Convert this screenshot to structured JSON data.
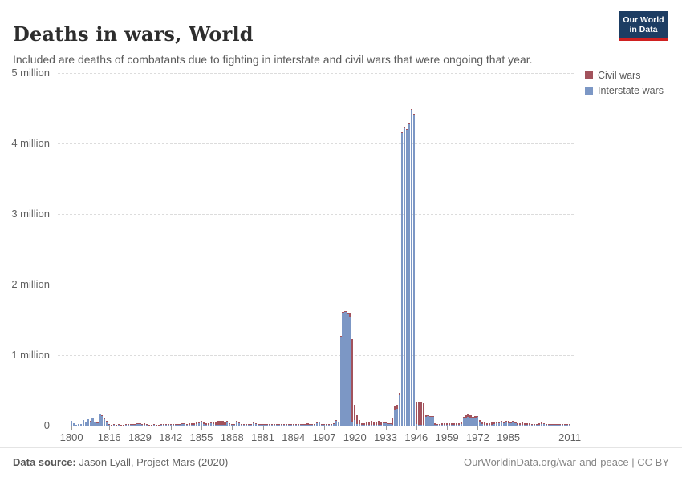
{
  "header": {
    "title": "Deaths in wars, World",
    "subtitle": "Included are deaths of combatants due to fighting in interstate and civil wars that were ongoing that year.",
    "logo": {
      "line1": "Our World",
      "line2": "in Data",
      "bg": "#1d3d63",
      "accent": "#cf2020"
    }
  },
  "footer": {
    "source_label": "Data source:",
    "source_value": " Jason Lyall, Project Mars (2020)",
    "link_text": "OurWorldinData.org/war-and-peace | CC BY"
  },
  "chart_data": {
    "type": "bar",
    "stacked": true,
    "title": "Deaths in wars, World",
    "xlabel": "",
    "ylabel": "",
    "unit": "millions of deaths",
    "grid": true,
    "legend_position": "top-right",
    "x_start_year": 1800,
    "x_end_year": 2011,
    "ylim_millions": [
      0,
      5
    ],
    "yticks": [
      {
        "value": 5,
        "label": "5 million"
      },
      {
        "value": 4,
        "label": "4 million"
      },
      {
        "value": 3,
        "label": "3 million"
      },
      {
        "value": 2,
        "label": "2 million"
      },
      {
        "value": 1,
        "label": "1 million"
      },
      {
        "value": 0,
        "label": "0"
      }
    ],
    "xtick_years": [
      1800,
      1816,
      1829,
      1842,
      1855,
      1868,
      1881,
      1894,
      1907,
      1920,
      1933,
      1946,
      1959,
      1972,
      1985,
      2011
    ],
    "series": [
      {
        "name": "Civil wars",
        "color": "#a2525c",
        "values": [
          0,
          0,
          0,
          0,
          0,
          0,
          0,
          0,
          0.01,
          0.005,
          0.01,
          0.01,
          0.01,
          0.005,
          0.005,
          0.005,
          0.003,
          0.005,
          0.008,
          0.005,
          0.008,
          0.015,
          0.01,
          0.005,
          0.008,
          0.01,
          0.005,
          0.003,
          0.003,
          0.003,
          0.01,
          0.02,
          0.01,
          0.005,
          0.008,
          0.01,
          0.008,
          0.01,
          0.008,
          0.005,
          0.01,
          0.005,
          0.005,
          0.003,
          0.005,
          0.005,
          0.005,
          0.005,
          0.01,
          0.01,
          0.02,
          0.025,
          0.02,
          0.025,
          0.025,
          0.025,
          0.02,
          0.03,
          0.025,
          0.02,
          0.03,
          0.04,
          0.055,
          0.055,
          0.06,
          0.05,
          0.02,
          0.01,
          0.01,
          0.01,
          0.005,
          0.01,
          0.01,
          0.01,
          0.01,
          0.008,
          0.015,
          0.01,
          0.005,
          0.005,
          0.008,
          0.008,
          0.01,
          0.005,
          0.005,
          0.01,
          0.005,
          0.003,
          0.003,
          0.005,
          0.005,
          0.01,
          0.005,
          0.008,
          0.005,
          0.01,
          0.015,
          0.015,
          0.01,
          0.015,
          0.02,
          0.015,
          0.01,
          0.008,
          0.003,
          0.005,
          0.005,
          0.005,
          0.003,
          0.005,
          0.008,
          0.015,
          0.01,
          0.01,
          0.01,
          0.01,
          0.01,
          0.02,
          0.05,
          1.18,
          0.22,
          0.13,
          0.06,
          0.02,
          0.03,
          0.04,
          0.05,
          0.06,
          0.05,
          0.04,
          0.06,
          0.03,
          0.02,
          0.02,
          0.01,
          0.01,
          0.09,
          0.06,
          0.06,
          0.04,
          0.005,
          0.005,
          0.01,
          0.01,
          0.01,
          0.02,
          0.31,
          0.32,
          0.33,
          0.31,
          0.02,
          0.01,
          0.005,
          0.005,
          0.02,
          0.01,
          0.015,
          0.02,
          0.02,
          0.02,
          0.02,
          0.02,
          0.025,
          0.025,
          0.03,
          0.04,
          0.03,
          0.04,
          0.04,
          0.04,
          0.03,
          0.03,
          0.02,
          0.02,
          0.02,
          0.03,
          0.02,
          0.02,
          0.03,
          0.03,
          0.03,
          0.03,
          0.03,
          0.03,
          0.03,
          0.03,
          0.03,
          0.03,
          0.03,
          0.03,
          0.025,
          0.03,
          0.025,
          0.02,
          0.02,
          0.015,
          0.015,
          0.01,
          0.02,
          0.015,
          0.01,
          0.01,
          0.008,
          0.008,
          0.008,
          0.005,
          0.005,
          0.008,
          0.008,
          0.01,
          0.005,
          0.008
        ]
      },
      {
        "name": "Interstate wars",
        "color": "#7c97c5",
        "values": [
          0.07,
          0.03,
          0.01,
          0.02,
          0.02,
          0.08,
          0.06,
          0.09,
          0.06,
          0.11,
          0.05,
          0.04,
          0.16,
          0.14,
          0.09,
          0.06,
          0.003,
          0,
          0.003,
          0,
          0.003,
          0,
          0,
          0.015,
          0.005,
          0.003,
          0.015,
          0.01,
          0.03,
          0.025,
          0.005,
          0.01,
          0.003,
          0,
          0,
          0.003,
          0,
          0,
          0.003,
          0.015,
          0.01,
          0.008,
          0.01,
          0.003,
          0.003,
          0.008,
          0.015,
          0.02,
          0.02,
          0.015,
          0.005,
          0.003,
          0.003,
          0.02,
          0.035,
          0.04,
          0.02,
          0.005,
          0.005,
          0.035,
          0.02,
          0.005,
          0.005,
          0.005,
          0.01,
          0.01,
          0.045,
          0.02,
          0.015,
          0.01,
          0.06,
          0.04,
          0.003,
          0.003,
          0.003,
          0.003,
          0.005,
          0.035,
          0.02,
          0.015,
          0.01,
          0.008,
          0.005,
          0.008,
          0.015,
          0.01,
          0.003,
          0.002,
          0.002,
          0.003,
          0.002,
          0.003,
          0.002,
          0.003,
          0.015,
          0.01,
          0.005,
          0.01,
          0.01,
          0.01,
          0.01,
          0.005,
          0.003,
          0.002,
          0.04,
          0.045,
          0.002,
          0.002,
          0.002,
          0.003,
          0.003,
          0.02,
          0.07,
          0.05,
          1.26,
          1.6,
          1.62,
          1.58,
          1.55,
          0.05,
          0.08,
          0.02,
          0.02,
          0.005,
          0.003,
          0.005,
          0.005,
          0.005,
          0.005,
          0.01,
          0.005,
          0.01,
          0.03,
          0.03,
          0.02,
          0.025,
          0.01,
          0.22,
          0.24,
          0.43,
          4.15,
          4.22,
          4.19,
          4.27,
          4.48,
          4.4,
          0.02,
          0.01,
          0.01,
          0.005,
          0.13,
          0.14,
          0.13,
          0.13,
          0.01,
          0.003,
          0.01,
          0.003,
          0.005,
          0.003,
          0.003,
          0.005,
          0.008,
          0.005,
          0.008,
          0.02,
          0.1,
          0.11,
          0.12,
          0.11,
          0.1,
          0.11,
          0.12,
          0.06,
          0.02,
          0.01,
          0.005,
          0.01,
          0.01,
          0.02,
          0.03,
          0.03,
          0.04,
          0.03,
          0.04,
          0.035,
          0.03,
          0.04,
          0.03,
          0.005,
          0.005,
          0.015,
          0.003,
          0.003,
          0.003,
          0.003,
          0.003,
          0.003,
          0.01,
          0.025,
          0.02,
          0.005,
          0.002,
          0.008,
          0.002,
          0.002,
          0.002,
          0.002,
          0.002,
          0.002,
          0.001,
          0.002
        ]
      }
    ]
  }
}
